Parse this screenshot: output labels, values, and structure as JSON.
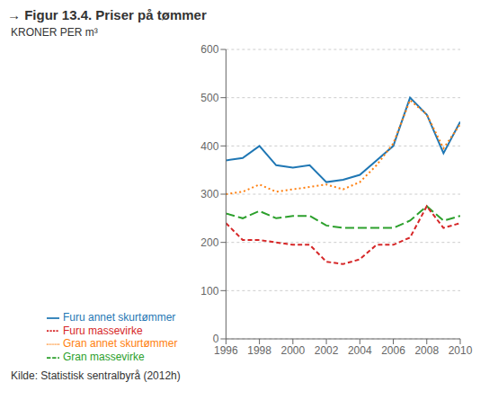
{
  "chart_data": {
    "type": "line",
    "title": "→ Figur 13.4. Priser på tømmer",
    "y_label": "KRONER PER m³",
    "source": "Kilde: Statistisk sentralbyrå (2012h)",
    "x": [
      1996,
      1997,
      1998,
      1999,
      2000,
      2001,
      2002,
      2003,
      2004,
      2005,
      2006,
      2007,
      2008,
      2009,
      2010
    ],
    "series": [
      {
        "name": "Furu annet skurtømmer",
        "color": "#1f77b4",
        "line_style": "solid",
        "values": [
          370,
          375,
          400,
          360,
          355,
          360,
          325,
          330,
          340,
          370,
          400,
          500,
          465,
          385,
          450
        ]
      },
      {
        "name": "Gran annet skurtømmer",
        "color": "#ff7f0e",
        "line_style": "dotted",
        "values": [
          300,
          305,
          320,
          305,
          310,
          315,
          320,
          310,
          325,
          360,
          405,
          495,
          465,
          395,
          445
        ]
      },
      {
        "name": "Gran massevirke",
        "color": "#2ca02c",
        "line_style": "longdash",
        "values": [
          260,
          250,
          265,
          250,
          255,
          255,
          235,
          230,
          230,
          230,
          230,
          245,
          275,
          245,
          255
        ]
      },
      {
        "name": "Furu massevirke",
        "color": "#d62728",
        "line_style": "dashed",
        "values": [
          240,
          205,
          205,
          200,
          195,
          195,
          160,
          155,
          165,
          195,
          195,
          210,
          275,
          230,
          240
        ]
      }
    ],
    "xlim": [
      1996,
      2010
    ],
    "xticks": [
      1996,
      1998,
      2000,
      2002,
      2004,
      2006,
      2008,
      2010
    ],
    "ylim": [
      0,
      600
    ],
    "yticks": [
      0,
      100,
      200,
      300,
      400,
      500,
      600
    ],
    "grid": "y",
    "legend": "bottom"
  }
}
